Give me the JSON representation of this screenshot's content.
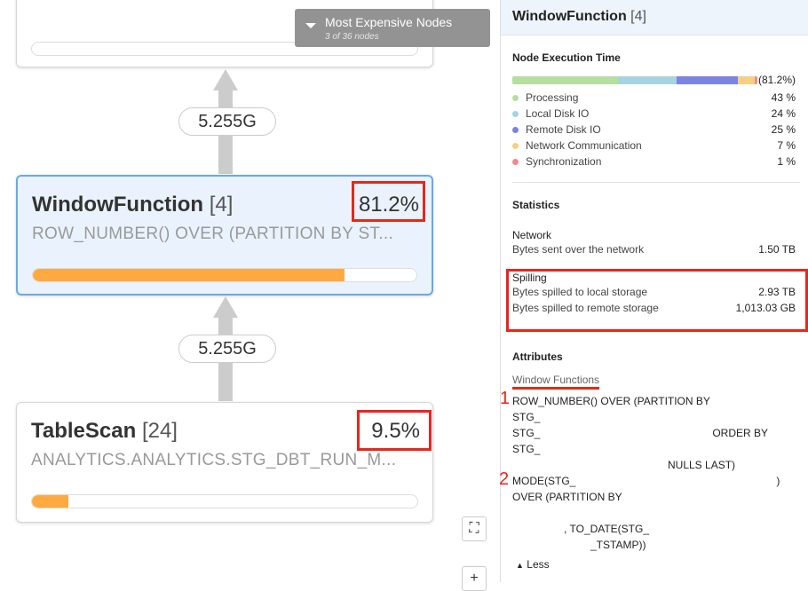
{
  "graph": {
    "dropdown": {
      "title": "Most Expensive Nodes",
      "subtitle": "3 of 36 nodes"
    },
    "edges": [
      "5.255G",
      "5.255G"
    ],
    "nodes": [
      {
        "name": "WindowFunction",
        "id": "[4]",
        "percent": "81.2%",
        "detail": "ROW_NUMBER() OVER (PARTITION BY ST...",
        "progress": 81.2
      },
      {
        "name": "TableScan",
        "id": "[24]",
        "percent": "9.5%",
        "detail": "ANALYTICS.ANALYTICS.STG_DBT_RUN_M...",
        "progress": 9.5
      }
    ],
    "fit_icon": "⛶",
    "zoom_in": "+"
  },
  "panel": {
    "title": "WindowFunction",
    "id": "[4]",
    "execution": {
      "heading": "Node Execution Time",
      "total": "(81.2%)",
      "items": [
        {
          "label": "Processing",
          "value": "43 %",
          "pct": 43,
          "color": "#b5dea0"
        },
        {
          "label": "Local Disk IO",
          "value": "24 %",
          "pct": 24,
          "color": "#a6d3df"
        },
        {
          "label": "Remote Disk IO",
          "value": "25 %",
          "pct": 25,
          "color": "#7b84e0"
        },
        {
          "label": "Network Communication",
          "value": "7 %",
          "pct": 7,
          "color": "#f6cf85"
        },
        {
          "label": "Synchronization",
          "value": "1 %",
          "pct": 1,
          "color": "#ef8a8a"
        }
      ]
    },
    "statistics": {
      "heading": "Statistics",
      "network": {
        "heading": "Network",
        "label": "Bytes sent over the network",
        "value": "1.50 TB"
      },
      "spilling": {
        "heading": "Spilling",
        "local_label": "Bytes spilled to local storage",
        "local_value": "2.93 TB",
        "remote_label": "Bytes spilled to remote storage",
        "remote_value": "1,013.03 GB"
      }
    },
    "attributes": {
      "heading": "Attributes",
      "subheading": "Window Functions",
      "annotations": [
        "1",
        "2"
      ],
      "lines": [
        "ROW_NUMBER() OVER (PARTITION BY",
        "STG_",
        "STG_",
        "ORDER BY",
        "STG_",
        "NULLS LAST)",
        "MODE(STG_",
        ")",
        "OVER (PARTITION BY",
        ", TO_DATE(STG_",
        "_TSTAMP))"
      ],
      "less": "Less"
    }
  }
}
